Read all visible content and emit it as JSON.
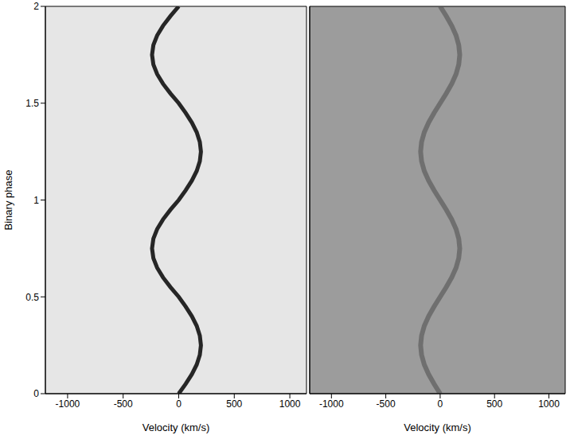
{
  "chart_data": [
    {
      "type": "line",
      "x_label": "Velocity (km/s)",
      "y_label": "Binary phase",
      "xlim": [
        -1200,
        1150
      ],
      "xticks": [
        -1000,
        -500,
        0,
        500,
        1000
      ],
      "ylim": [
        0,
        2
      ],
      "yticks": [
        0,
        0.5,
        1,
        1.5,
        2
      ],
      "series": [
        {
          "color": "#262626",
          "x": [
            0,
            62,
            118,
            162,
            190,
            200,
            190,
            162,
            118,
            62,
            0,
            -74,
            -141,
            -194,
            -228,
            -240,
            -228,
            -194,
            -141,
            -74,
            0,
            62,
            118,
            162,
            190,
            200,
            190,
            162,
            118,
            62,
            0,
            -74,
            -141,
            -194,
            -228,
            -240,
            -228,
            -194,
            -141,
            -74,
            0
          ],
          "values": [
            0,
            0.05,
            0.1,
            0.15,
            0.2,
            0.25,
            0.3,
            0.35,
            0.4,
            0.45,
            0.5,
            0.55,
            0.6,
            0.65,
            0.7,
            0.75,
            0.8,
            0.85,
            0.9,
            0.95,
            1,
            1.05,
            1.1,
            1.15,
            1.2,
            1.25,
            1.3,
            1.35,
            1.4,
            1.45,
            1.5,
            1.55,
            1.6,
            1.65,
            1.7,
            1.75,
            1.8,
            1.85,
            1.9,
            1.95,
            2
          ]
        }
      ]
    },
    {
      "type": "line",
      "x_label": "Velocity (km/s)",
      "tick_labels": "x",
      "xlim": [
        -1200,
        1150
      ],
      "xticks": [
        -1000,
        -500,
        0,
        500,
        1000
      ],
      "ylim": [
        0,
        2
      ],
      "yticks": [
        0,
        0.5,
        1,
        1.5,
        2
      ],
      "series": [
        {
          "color": "#4a4a4a",
          "x": [
            0,
            -56,
            -106,
            -146,
            -171,
            -180,
            -171,
            -146,
            -106,
            -56,
            0,
            56,
            106,
            146,
            171,
            180,
            171,
            146,
            106,
            56,
            0,
            -56,
            -106,
            -146,
            -171,
            -180,
            -171,
            -146,
            -106,
            -56,
            0,
            56,
            106,
            146,
            171,
            180,
            171,
            146,
            106,
            56,
            0
          ],
          "values": [
            0,
            0.05,
            0.1,
            0.15,
            0.2,
            0.25,
            0.3,
            0.35,
            0.4,
            0.45,
            0.5,
            0.55,
            0.6,
            0.65,
            0.7,
            0.75,
            0.8,
            0.85,
            0.9,
            0.95,
            1,
            1.05,
            1.1,
            1.15,
            1.2,
            1.25,
            1.3,
            1.35,
            1.4,
            1.45,
            1.5,
            1.55,
            1.6,
            1.65,
            1.7,
            1.75,
            1.8,
            1.85,
            1.9,
            1.95,
            2
          ]
        }
      ]
    }
  ]
}
